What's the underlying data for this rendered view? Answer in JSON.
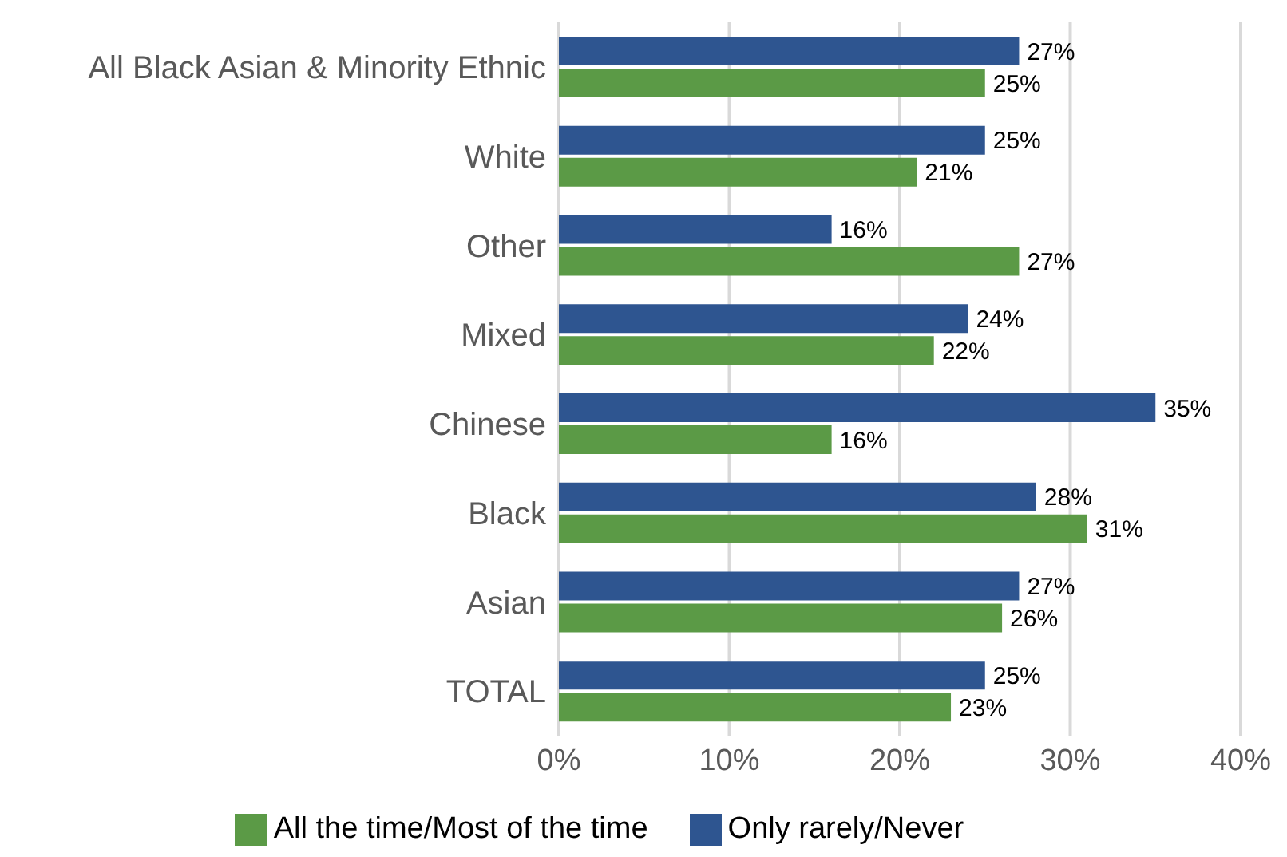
{
  "chart_data": {
    "type": "bar",
    "orientation": "horizontal",
    "categories": [
      "All Black Asian & Minority Ethnic",
      "White",
      "Other",
      "Mixed",
      "Chinese",
      "Black",
      "Asian",
      "TOTAL"
    ],
    "series": [
      {
        "name": "Only rarely/Never",
        "color": "#2e5590",
        "values": [
          27,
          25,
          16,
          24,
          35,
          28,
          27,
          25
        ],
        "value_labels": [
          "27%",
          "25%",
          "16%",
          "24%",
          "35%",
          "28%",
          "27%",
          "25%"
        ]
      },
      {
        "name": "All the time/Most of the time",
        "color": "#5b9a46",
        "values": [
          25,
          21,
          27,
          22,
          16,
          31,
          26,
          23
        ],
        "value_labels": [
          "25%",
          "21%",
          "27%",
          "22%",
          "16%",
          "31%",
          "26%",
          "23%"
        ]
      }
    ],
    "xlim": [
      0,
      40
    ],
    "xticks": [
      {
        "value": 0,
        "label": "0%"
      },
      {
        "value": 10,
        "label": "10%"
      },
      {
        "value": 20,
        "label": "20%"
      },
      {
        "value": 30,
        "label": "30%"
      },
      {
        "value": 40,
        "label": "40%"
      }
    ],
    "grid": "x",
    "legend": "bottom"
  }
}
